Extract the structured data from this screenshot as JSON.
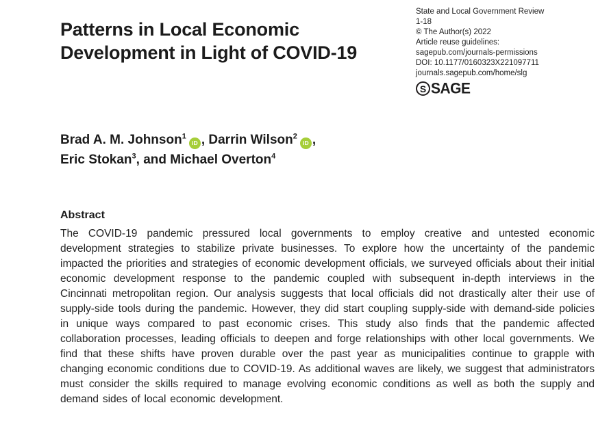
{
  "article": {
    "title": "Patterns in Local Economic Development in Light of COVID-19",
    "authors": [
      {
        "name": "Brad A. M. Johnson",
        "mark": "1",
        "sep": ", "
      },
      {
        "name": "Darrin Wilson",
        "mark": "2",
        "sep": ","
      },
      {
        "name": "Eric Stokan",
        "mark": "3",
        "sep": ", and "
      },
      {
        "name": "Michael Overton",
        "mark": "4",
        "sep": ""
      }
    ],
    "orcid_badge": "iD",
    "abstract_heading": "Abstract",
    "abstract_text": "The COVID-19 pandemic pressured local governments to employ creative and untested economic development strategies to stabilize private businesses. To explore how the uncertainty of the pandemic impacted the priorities and strategies of economic development officials, we surveyed officials about their initial economic development response to the pandemic coupled with subsequent in-depth interviews in the Cincinnati metropolitan region. Our analysis suggests that local officials did not drastically alter their use of supply-side tools during the pandemic. However, they did start coupling supply-side with demand-side policies in unique ways compared to past economic crises. This study also finds that the pandemic affected collaboration processes, leading officials to deepen and forge relationships with other local governments. We find that these shifts have proven durable over the past year as municipalities continue to grapple with changing economic conditions due to COVID-19. As additional waves are likely, we suggest that administrators must consider the skills required to manage evolving economic conditions as well as both the supply and demand sides of local economic development."
  },
  "journal_info": {
    "journal_name": "State and Local Government Review",
    "pages": "1-18",
    "copyright": "© The Author(s) 2022",
    "reuse_label": "Article reuse guidelines:",
    "reuse_url": "sagepub.com/journals-permissions",
    "doi": "DOI: 10.1177/0160323X221097711",
    "home_url": "journals.sagepub.com/home/slg",
    "publisher_mark": "S",
    "publisher_name": "SAGE"
  },
  "colors": {
    "text": "#231f20",
    "orcid_green": "#a6ce39",
    "background": "#ffffff"
  }
}
